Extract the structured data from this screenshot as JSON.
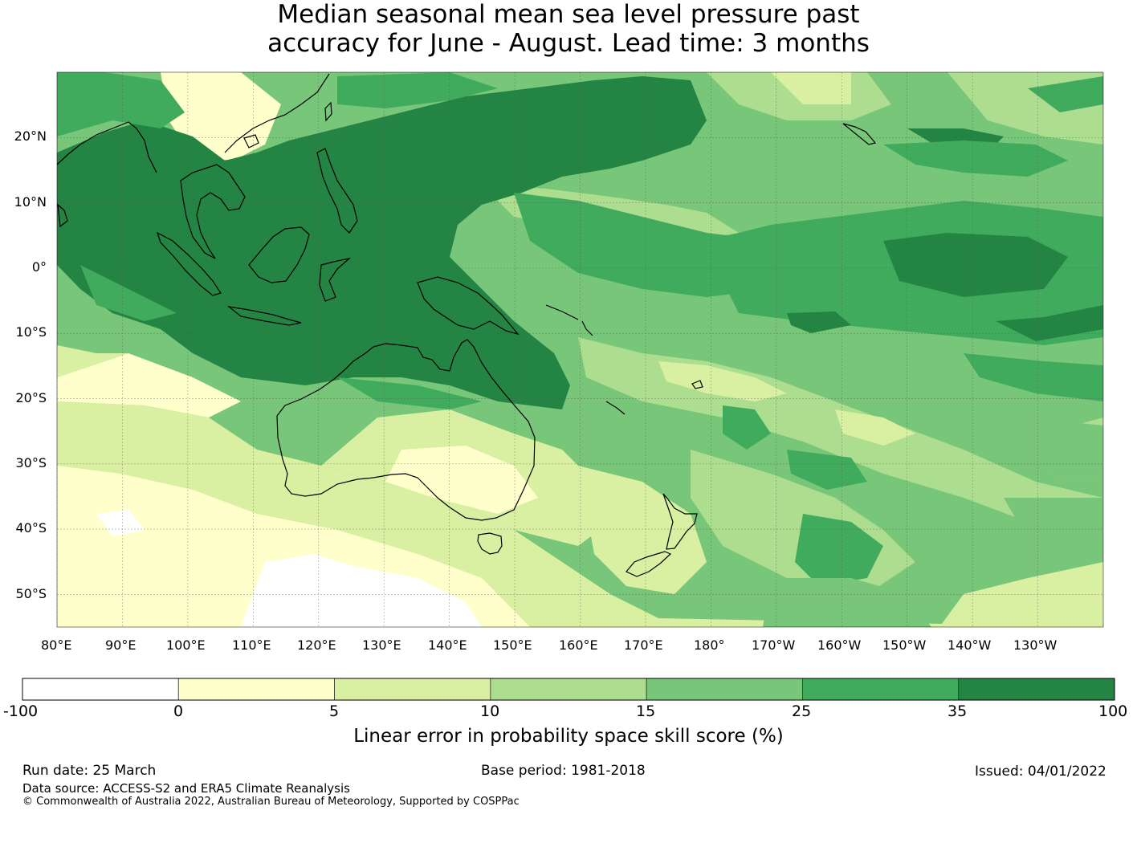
{
  "title": {
    "line1": "Median seasonal mean sea level pressure past",
    "line2": "accuracy for June - August. Lead time: 3 months"
  },
  "map": {
    "lat_labels": [
      "20°N",
      "10°N",
      "0°",
      "10°S",
      "20°S",
      "30°S",
      "40°S",
      "50°S"
    ],
    "lon_labels": [
      "80°E",
      "90°E",
      "100°E",
      "110°E",
      "120°E",
      "130°E",
      "140°E",
      "150°E",
      "160°E",
      "170°E",
      "180°",
      "170°W",
      "160°W",
      "150°W",
      "140°W",
      "130°W"
    ],
    "extent": {
      "lon_min": 80,
      "lon_max": 240,
      "lat_min": -55,
      "lat_max": 30
    }
  },
  "colorbar": {
    "bins": [
      {
        "from": -100,
        "to": 0,
        "color": "#ffffff"
      },
      {
        "from": 0,
        "to": 5,
        "color": "#ffffcc"
      },
      {
        "from": 5,
        "to": 10,
        "color": "#d9f0a3"
      },
      {
        "from": 10,
        "to": 15,
        "color": "#addd8e"
      },
      {
        "from": 15,
        "to": 25,
        "color": "#78c679"
      },
      {
        "from": 25,
        "to": 35,
        "color": "#41ab5d"
      },
      {
        "from": 35,
        "to": 100,
        "color": "#238443"
      }
    ],
    "tick_labels": [
      "-100",
      "0",
      "5",
      "10",
      "15",
      "25",
      "35",
      "100"
    ],
    "label": "Linear error in probability space skill score (%)"
  },
  "footer": {
    "run_date": "Run date: 25 March",
    "base_period": "Base period: 1981-2018",
    "issued": "Issued: 04/01/2022",
    "data_source": "Data source: ACCESS-S2 and ERA5 Climate Reanalysis",
    "copyright": "© Commonwealth of Australia 2022, Australian Bureau of Meteorology, Supported by COSPPac"
  }
}
